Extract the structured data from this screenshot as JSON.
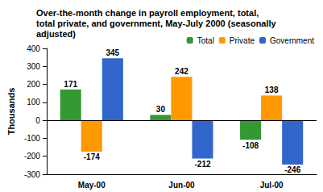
{
  "chart_data": {
    "type": "bar",
    "title": "Over-the-month change in payroll employment, total,\ntotal private, and government, May-July 2000 (seasonally\nadjusted)",
    "y_label": "Thousands",
    "categories": [
      "May-00",
      "Jun-00",
      "Jul-00"
    ],
    "series": [
      {
        "name": "Total",
        "color": "#339933",
        "values": [
          171,
          30,
          -108
        ]
      },
      {
        "name": "Private",
        "color": "#ff9900",
        "values": [
          -174,
          242,
          138
        ]
      },
      {
        "name": "Government",
        "color": "#3366cc",
        "values": [
          345,
          -212,
          -246
        ]
      }
    ],
    "ylim": [
      -300,
      400
    ],
    "yticks": [
      -300,
      -200,
      -100,
      0,
      100,
      200,
      300,
      400
    ],
    "grid": false,
    "legend": "top-right",
    "data_labels": true
  }
}
